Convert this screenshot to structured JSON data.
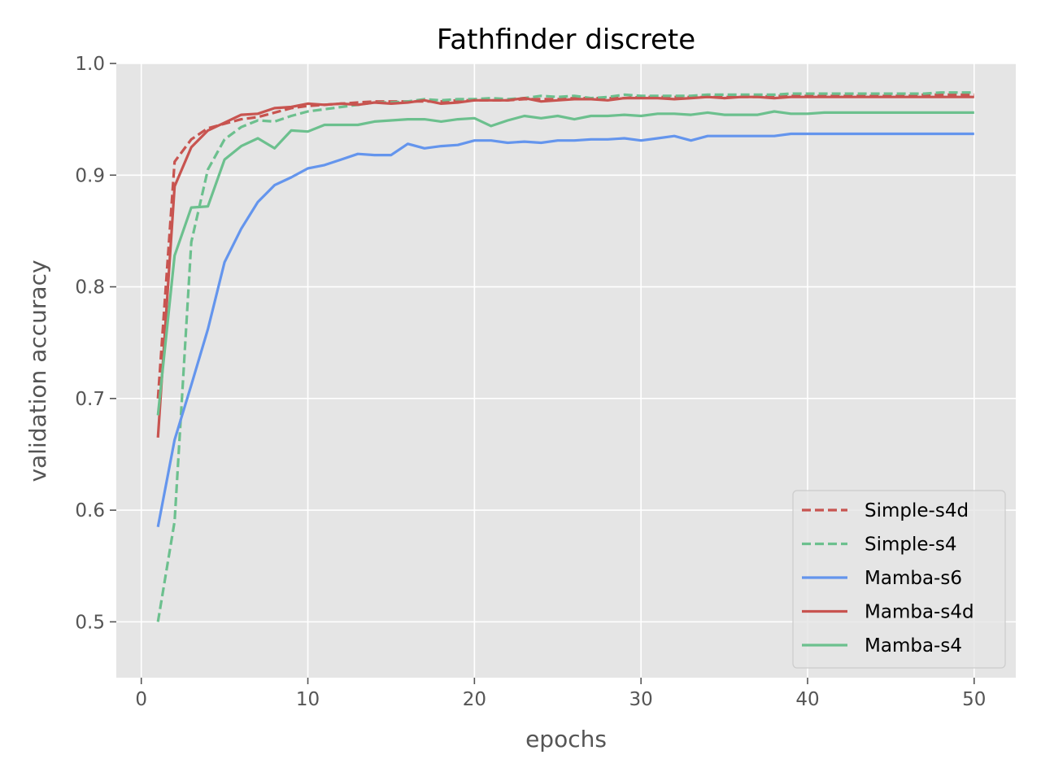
{
  "chart_data": {
    "type": "line",
    "title": "Fathfinder discrete",
    "xlabel": "epochs",
    "ylabel": "validation accuracy",
    "xlim": [
      -1.5,
      52.5
    ],
    "ylim": [
      0.45,
      1.0
    ],
    "xticks": [
      0,
      10,
      20,
      30,
      40,
      50
    ],
    "yticks": [
      0.5,
      0.6,
      0.7,
      0.8,
      0.9,
      1.0
    ],
    "xtick_labels": [
      "0",
      "10",
      "20",
      "30",
      "40",
      "50"
    ],
    "ytick_labels": [
      "0.5",
      "0.6",
      "0.7",
      "0.8",
      "0.9",
      "1.0"
    ],
    "grid": true,
    "legend_position": "lower-right",
    "series": [
      {
        "name": "Simple-s4d",
        "color": "#c85450",
        "style": "dashed",
        "x": [
          1,
          2,
          3,
          4,
          5,
          6,
          7,
          8,
          9,
          10,
          11,
          12,
          13,
          14,
          15,
          16,
          17,
          18,
          19,
          20,
          21,
          22,
          23,
          24,
          25,
          26,
          27,
          28,
          29,
          30,
          31,
          32,
          33,
          34,
          35,
          36,
          37,
          38,
          39,
          40,
          41,
          42,
          43,
          44,
          45,
          46,
          47,
          48,
          49,
          50
        ],
        "values": [
          0.7,
          0.912,
          0.932,
          0.942,
          0.946,
          0.95,
          0.952,
          0.956,
          0.96,
          0.962,
          0.963,
          0.964,
          0.965,
          0.966,
          0.966,
          0.966,
          0.966,
          0.966,
          0.967,
          0.967,
          0.967,
          0.967,
          0.968,
          0.968,
          0.968,
          0.969,
          0.969,
          0.969,
          0.969,
          0.97,
          0.97,
          0.97,
          0.97,
          0.97,
          0.97,
          0.97,
          0.97,
          0.971,
          0.971,
          0.971,
          0.971,
          0.971,
          0.971,
          0.971,
          0.971,
          0.971,
          0.972,
          0.972,
          0.972,
          0.972
        ]
      },
      {
        "name": "Simple-s4",
        "color": "#6cc08e",
        "style": "dashed",
        "x": [
          1,
          2,
          3,
          4,
          5,
          6,
          7,
          8,
          9,
          10,
          11,
          12,
          13,
          14,
          15,
          16,
          17,
          18,
          19,
          20,
          21,
          22,
          23,
          24,
          25,
          26,
          27,
          28,
          29,
          30,
          31,
          32,
          33,
          34,
          35,
          36,
          37,
          38,
          39,
          40,
          41,
          42,
          43,
          44,
          45,
          46,
          47,
          48,
          49,
          50
        ],
        "values": [
          0.5,
          0.59,
          0.84,
          0.905,
          0.932,
          0.943,
          0.949,
          0.948,
          0.953,
          0.957,
          0.959,
          0.961,
          0.963,
          0.965,
          0.965,
          0.966,
          0.968,
          0.967,
          0.968,
          0.968,
          0.969,
          0.968,
          0.969,
          0.971,
          0.97,
          0.971,
          0.969,
          0.97,
          0.972,
          0.971,
          0.971,
          0.971,
          0.971,
          0.972,
          0.972,
          0.972,
          0.972,
          0.972,
          0.973,
          0.973,
          0.973,
          0.973,
          0.973,
          0.973,
          0.973,
          0.973,
          0.973,
          0.974,
          0.974,
          0.974
        ]
      },
      {
        "name": "Mamba-s6",
        "color": "#6495ed",
        "style": "solid",
        "x": [
          1,
          2,
          3,
          4,
          5,
          6,
          7,
          8,
          9,
          10,
          11,
          12,
          13,
          14,
          15,
          16,
          17,
          18,
          19,
          20,
          21,
          22,
          23,
          24,
          25,
          26,
          27,
          28,
          29,
          30,
          31,
          32,
          33,
          34,
          35,
          36,
          37,
          38,
          39,
          40,
          41,
          42,
          43,
          44,
          45,
          46,
          47,
          48,
          49,
          50
        ],
        "values": [
          0.585,
          0.663,
          0.712,
          0.762,
          0.822,
          0.852,
          0.876,
          0.891,
          0.898,
          0.906,
          0.909,
          0.914,
          0.919,
          0.918,
          0.918,
          0.928,
          0.924,
          0.926,
          0.927,
          0.931,
          0.931,
          0.929,
          0.93,
          0.929,
          0.931,
          0.931,
          0.932,
          0.932,
          0.933,
          0.931,
          0.933,
          0.935,
          0.931,
          0.935,
          0.935,
          0.935,
          0.935,
          0.935,
          0.937,
          0.937,
          0.937,
          0.937,
          0.937,
          0.937,
          0.937,
          0.937,
          0.937,
          0.937,
          0.937,
          0.937
        ]
      },
      {
        "name": "Mamba-s4d",
        "color": "#c85450",
        "style": "solid",
        "x": [
          1,
          2,
          3,
          4,
          5,
          6,
          7,
          8,
          9,
          10,
          11,
          12,
          13,
          14,
          15,
          16,
          17,
          18,
          19,
          20,
          21,
          22,
          23,
          24,
          25,
          26,
          27,
          28,
          29,
          30,
          31,
          32,
          33,
          34,
          35,
          36,
          37,
          38,
          39,
          40,
          41,
          42,
          43,
          44,
          45,
          46,
          47,
          48,
          49,
          50
        ],
        "values": [
          0.665,
          0.89,
          0.925,
          0.94,
          0.947,
          0.954,
          0.955,
          0.96,
          0.961,
          0.964,
          0.963,
          0.964,
          0.963,
          0.965,
          0.964,
          0.965,
          0.967,
          0.964,
          0.965,
          0.967,
          0.967,
          0.967,
          0.969,
          0.966,
          0.967,
          0.968,
          0.968,
          0.967,
          0.969,
          0.969,
          0.969,
          0.968,
          0.969,
          0.97,
          0.969,
          0.97,
          0.97,
          0.969,
          0.97,
          0.97,
          0.97,
          0.97,
          0.97,
          0.97,
          0.97,
          0.97,
          0.97,
          0.97,
          0.97,
          0.97
        ]
      },
      {
        "name": "Mamba-s4",
        "color": "#6cc08e",
        "style": "solid",
        "x": [
          1,
          2,
          3,
          4,
          5,
          6,
          7,
          8,
          9,
          10,
          11,
          12,
          13,
          14,
          15,
          16,
          17,
          18,
          19,
          20,
          21,
          22,
          23,
          24,
          25,
          26,
          27,
          28,
          29,
          30,
          31,
          32,
          33,
          34,
          35,
          36,
          37,
          38,
          39,
          40,
          41,
          42,
          43,
          44,
          45,
          46,
          47,
          48,
          49,
          50
        ],
        "values": [
          0.685,
          0.828,
          0.871,
          0.872,
          0.914,
          0.926,
          0.933,
          0.924,
          0.94,
          0.939,
          0.945,
          0.945,
          0.945,
          0.948,
          0.949,
          0.95,
          0.95,
          0.948,
          0.95,
          0.951,
          0.944,
          0.949,
          0.953,
          0.951,
          0.953,
          0.95,
          0.953,
          0.953,
          0.954,
          0.953,
          0.955,
          0.955,
          0.954,
          0.956,
          0.954,
          0.954,
          0.954,
          0.957,
          0.955,
          0.955,
          0.956,
          0.956,
          0.956,
          0.956,
          0.956,
          0.956,
          0.956,
          0.956,
          0.956,
          0.956
        ]
      }
    ]
  }
}
